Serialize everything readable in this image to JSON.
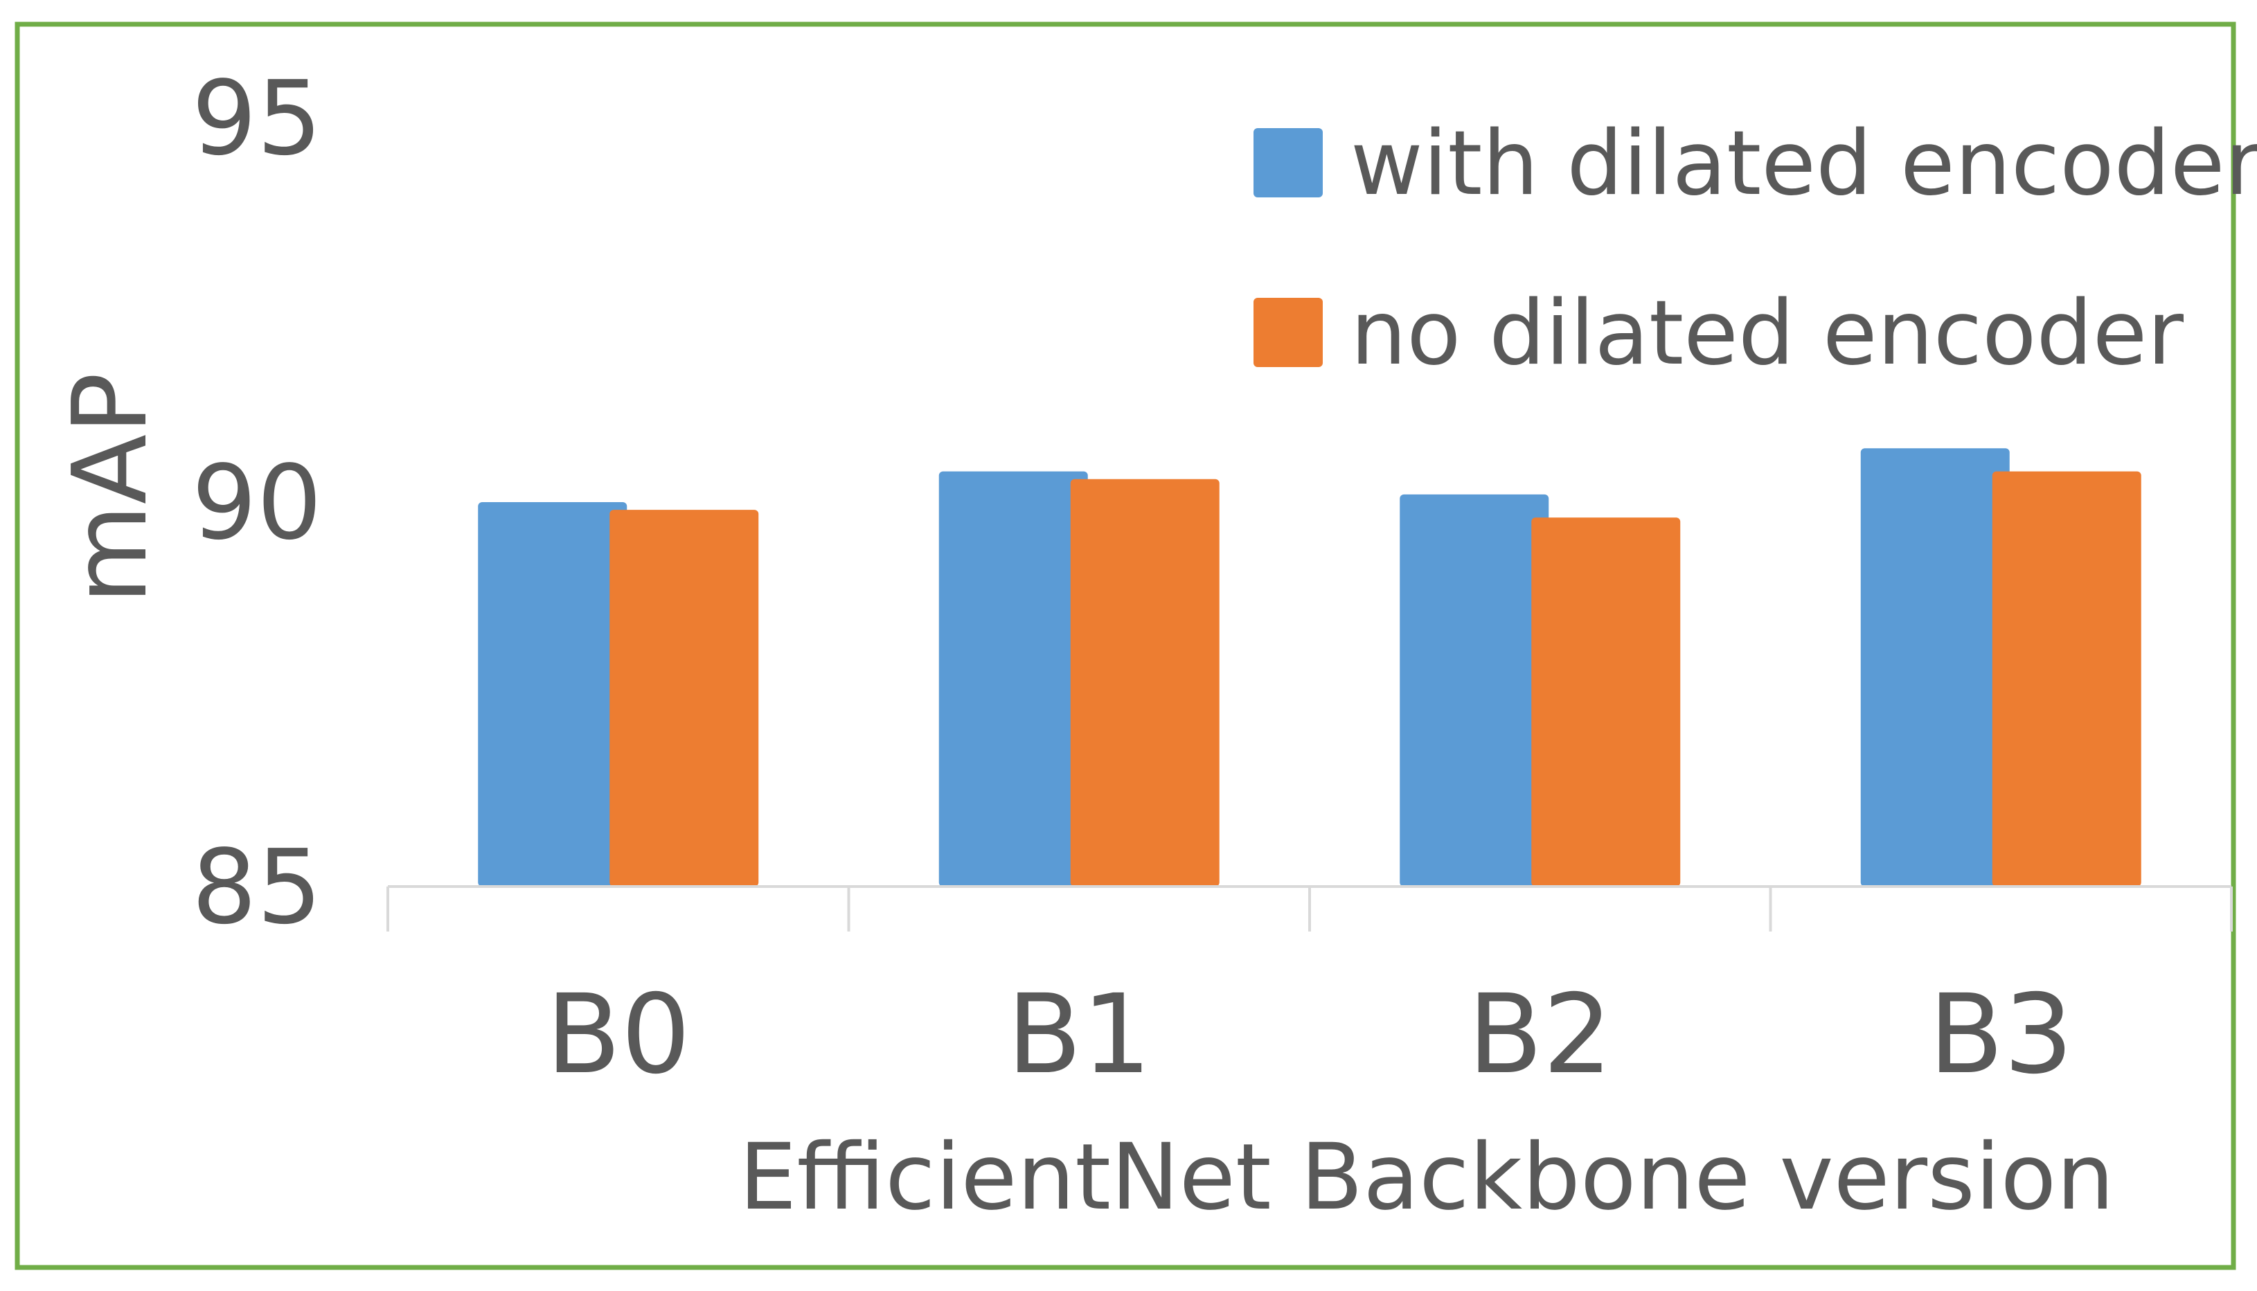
{
  "chart_data": {
    "type": "bar",
    "title": "",
    "xlabel": "EfficientNet Backbone version",
    "ylabel": "mAP",
    "categories": [
      "B0",
      "B1",
      "B2",
      "B3"
    ],
    "series": [
      {
        "name": "with dilated encoder",
        "color": "#5B9BD5",
        "values": [
          90.0,
          90.4,
          90.1,
          90.7
        ]
      },
      {
        "name": "no dilated encoder",
        "color": "#ED7D31",
        "values": [
          89.9,
          90.3,
          89.8,
          90.4
        ]
      }
    ],
    "ylim": [
      85,
      95
    ],
    "yticks": [
      "85",
      "90",
      "95"
    ],
    "grid": false,
    "legend_position": "top-right",
    "frame_color": "#70AD47"
  }
}
